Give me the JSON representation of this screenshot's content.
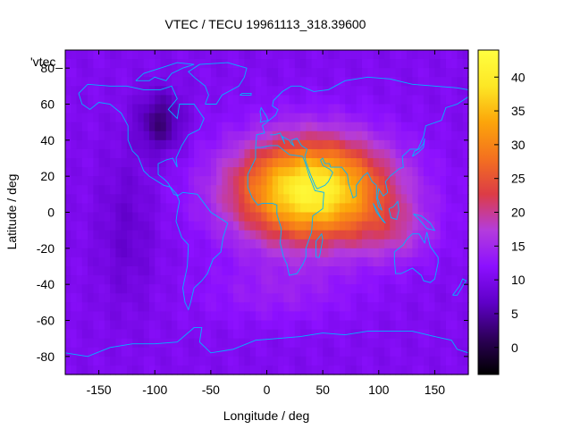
{
  "chart_data": {
    "type": "heatmap",
    "title": "VTEC / TECU 19961113_318.39600",
    "xlabel": "Longitude / deg",
    "ylabel": "Latitude / deg",
    "series_label": "'vtec_",
    "xlim": [
      -180,
      180
    ],
    "ylim": [
      -90,
      90
    ],
    "x_ticks": [
      -150,
      -100,
      -50,
      0,
      50,
      100,
      150
    ],
    "y_ticks": [
      -80,
      -60,
      -40,
      -20,
      0,
      20,
      40,
      60,
      80
    ],
    "colorbar": {
      "range": [
        -4,
        44
      ],
      "ticks": [
        0,
        5,
        10,
        15,
        20,
        25,
        30,
        35,
        40
      ],
      "palette": [
        "#000000",
        "#2d0059",
        "#5f00c8",
        "#8c10ff",
        "#b43cdc",
        "#dc3c46",
        "#f4711f",
        "#fca50a",
        "#fde725",
        "#ffff40"
      ]
    },
    "notes": "Background VTEC about 9-12 TECU; enhancement centred near lon 40, lat 10 reaching about 42 TECU; minimum about 3 TECU near lon -95, lat 50.",
    "features": {
      "background_level": 10.5,
      "peak": {
        "lon": 40,
        "lat": 12,
        "value": 42
      },
      "minimum": {
        "lon": -95,
        "lat": 50,
        "value": 3
      }
    }
  },
  "colors": {
    "coastline": "#00b4ff",
    "background": "#ffffff",
    "frame": "#000000"
  }
}
